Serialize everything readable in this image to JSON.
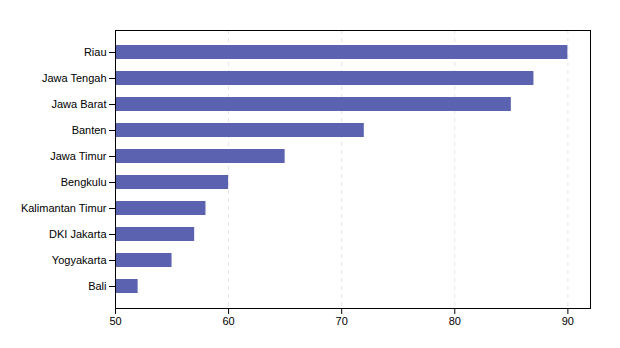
{
  "chart_data": {
    "type": "bar",
    "orientation": "horizontal",
    "categories": [
      "Bali",
      "Yogyakarta",
      "DKI Jakarta",
      "Kalimantan Timur",
      "Bengkulu",
      "Jawa Timur",
      "Banten",
      "Jawa Barat",
      "Jawa Tengah",
      "Riau"
    ],
    "values": [
      52,
      55,
      57,
      58,
      60,
      65,
      72,
      85,
      87,
      90
    ],
    "color": "#5b62b0",
    "xlim": [
      50,
      92
    ],
    "xticks": [
      50,
      60,
      70,
      80,
      90
    ],
    "grid": true
  }
}
